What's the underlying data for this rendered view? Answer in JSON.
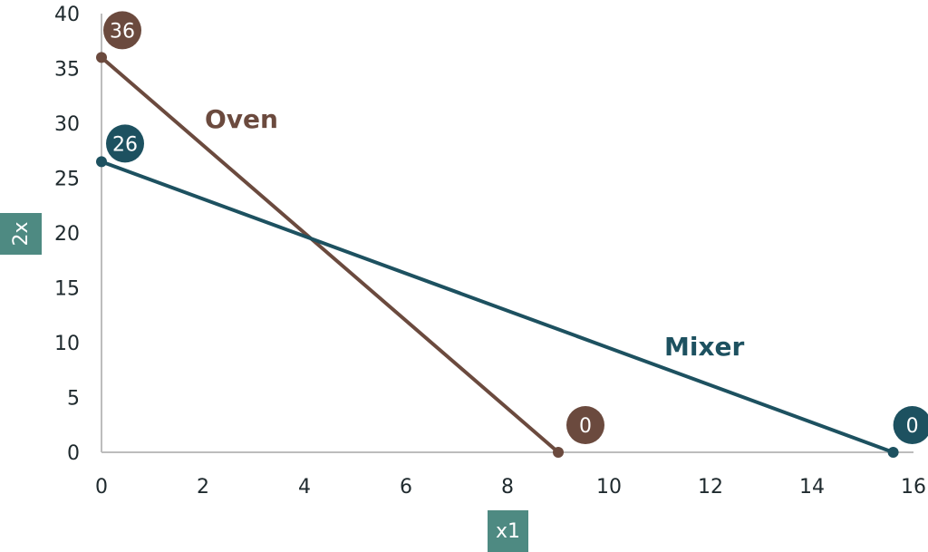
{
  "chart_data": {
    "type": "line",
    "xlabel": "x1",
    "ylabel": "2x",
    "xlim": [
      0,
      16
    ],
    "ylim": [
      0,
      40
    ],
    "x_ticks": [
      0,
      2,
      4,
      6,
      8,
      10,
      12,
      14,
      16
    ],
    "y_ticks": [
      0,
      5,
      10,
      15,
      20,
      25,
      30,
      35,
      40
    ],
    "grid": false,
    "series": [
      {
        "name": "Oven",
        "color": "#6b4a3e",
        "points": [
          [
            0,
            36
          ],
          [
            9,
            0
          ]
        ],
        "badges": [
          "36",
          "0"
        ]
      },
      {
        "name": "Mixer",
        "color": "#1d5160",
        "points": [
          [
            0,
            26.5
          ],
          [
            15.6,
            0
          ]
        ],
        "badges": [
          "26",
          "0"
        ]
      }
    ],
    "axis_label_box_color": "#4e8a82"
  }
}
